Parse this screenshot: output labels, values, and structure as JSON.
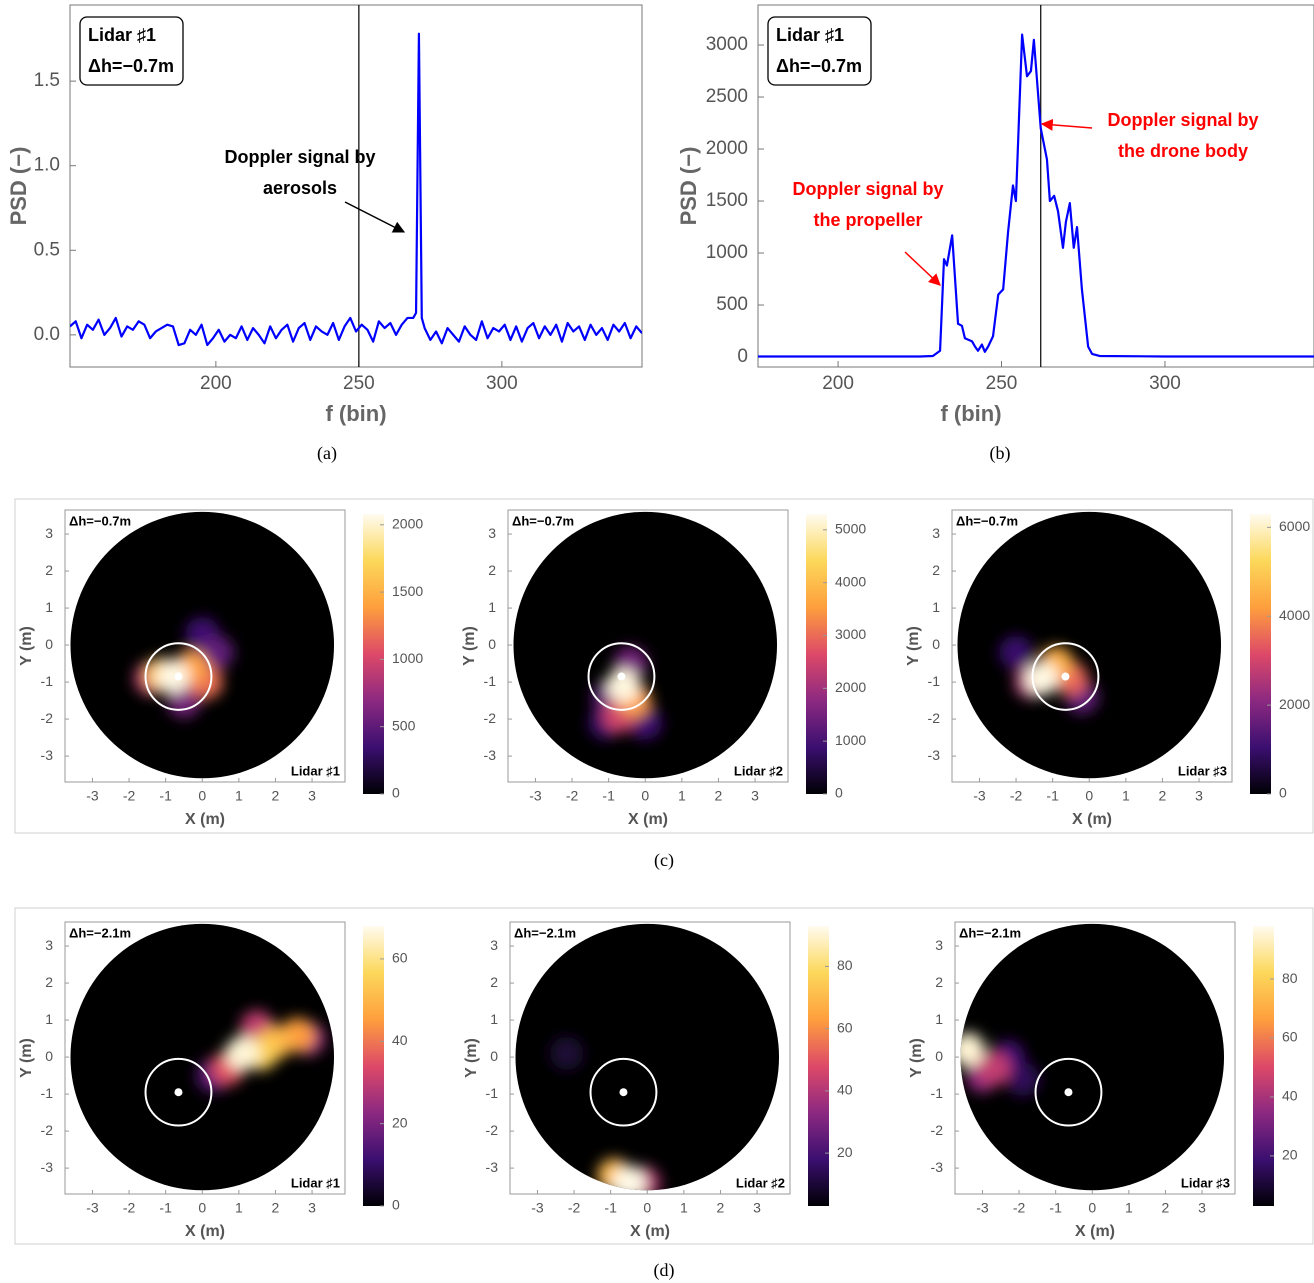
{
  "captions": [
    "(a)",
    "(b)",
    "(c)",
    "(d)"
  ],
  "colormap": [
    "#000004",
    "#3b0f70",
    "#8c2981",
    "#de4968",
    "#fe9f3d",
    "#fcd85a",
    "#fffbf0"
  ],
  "chart_data": [
    {
      "type": "line",
      "xlabel": "f (bin)",
      "ylabel": "PSD (−)",
      "color": "#0000ff",
      "box_text": [
        "Lidar ♯1",
        "Δh=−0.7m"
      ],
      "xlim": [
        149,
        349
      ],
      "ylim": [
        -0.19,
        1.95
      ],
      "xticks": [
        200,
        250,
        300
      ],
      "yticks": [
        {
          "value": 0,
          "label": "0.0"
        },
        0.5,
        {
          "value": 1,
          "label": "1.0"
        },
        1.5
      ],
      "vline": 250,
      "annotations": [
        {
          "text": [
            "Doppler signal by",
            "aerosols"
          ],
          "color": "#000000"
        }
      ],
      "x": [
        149,
        151,
        153,
        155,
        157,
        159,
        161,
        163,
        165,
        167,
        169,
        171,
        173,
        175,
        177,
        179,
        181,
        183,
        185,
        187,
        189,
        191,
        193,
        195,
        197,
        199,
        201,
        203,
        205,
        207,
        209,
        211,
        213,
        215,
        217,
        219,
        221,
        223,
        225,
        227,
        229,
        231,
        233,
        235,
        237,
        239,
        241,
        243,
        245,
        247,
        249,
        251,
        253,
        255,
        257,
        259,
        261,
        263,
        265,
        267,
        269,
        270,
        271,
        272,
        273,
        275,
        277,
        279,
        281,
        283,
        285,
        287,
        289,
        291,
        293,
        295,
        297,
        299,
        301,
        303,
        305,
        307,
        309,
        311,
        313,
        315,
        317,
        319,
        321,
        323,
        325,
        327,
        329,
        331,
        333,
        335,
        337,
        339,
        341,
        343,
        345,
        347,
        349
      ],
      "values": [
        0.05,
        0.08,
        -0.02,
        0.06,
        0.03,
        0.09,
        0.0,
        0.04,
        0.1,
        -0.01,
        0.05,
        0.03,
        0.08,
        0.06,
        -0.02,
        0.02,
        0.04,
        0.06,
        0.05,
        -0.06,
        -0.05,
        0.03,
        0.0,
        0.06,
        -0.06,
        -0.02,
        0.03,
        -0.04,
        0.0,
        -0.02,
        0.05,
        -0.03,
        0.04,
        0.0,
        -0.05,
        0.05,
        -0.02,
        0.03,
        0.06,
        -0.04,
        0.04,
        0.07,
        -0.03,
        0.05,
        0.02,
        0.0,
        0.07,
        -0.03,
        0.05,
        0.1,
        0.02,
        0.06,
        0.03,
        -0.04,
        0.08,
        0.04,
        0.07,
        0.0,
        0.06,
        0.1,
        0.1,
        0.13,
        1.78,
        0.1,
        0.04,
        -0.03,
        0.02,
        -0.05,
        0.04,
        0.0,
        -0.04,
        0.05,
        0.0,
        -0.03,
        0.08,
        -0.02,
        0.04,
        0.02,
        0.06,
        -0.03,
        0.05,
        -0.04,
        0.04,
        0.07,
        -0.02,
        0.05,
        0.0,
        0.06,
        -0.04,
        0.07,
        0.02,
        0.05,
        -0.03,
        0.06,
        0.0,
        0.04,
        -0.03,
        0.06,
        0.02,
        0.07,
        -0.02,
        0.05,
        0.01
      ]
    },
    {
      "type": "line",
      "xlabel": "f (bin)",
      "ylabel": "PSD (−)",
      "color": "#0000ff",
      "box_text": [
        "Lidar ♯1",
        "Δh=−0.7m"
      ],
      "xlim": [
        175.5,
        345.6
      ],
      "ylim": [
        -96,
        3385
      ],
      "xticks": [
        200,
        250,
        300
      ],
      "yticks": [
        0,
        500,
        1000,
        1500,
        2000,
        2500,
        3000
      ],
      "vline": 262,
      "annotations": [
        {
          "text": [
            "Doppler signal by",
            "the propeller"
          ],
          "color": "#ff0000"
        },
        {
          "text": [
            "Doppler signal by",
            "the drone body"
          ],
          "color": "#ff0000"
        }
      ],
      "x": [
        175.5,
        200,
        225,
        229,
        231.2,
        232.4,
        233.3,
        234.9,
        236.7,
        237.9,
        238.8,
        241,
        241.9,
        242.8,
        244,
        244.9,
        245.9,
        247.4,
        249,
        250.5,
        252,
        253.5,
        254.4,
        256.3,
        257.8,
        259,
        259.9,
        262,
        263.9,
        264.8,
        266.1,
        267.3,
        268.8,
        269.7,
        270.9,
        272.1,
        273.1,
        274.6,
        276.5,
        277.7,
        280,
        300,
        345.6
      ],
      "values": [
        5,
        5,
        5,
        10,
        60,
        940,
        880,
        1170,
        320,
        300,
        180,
        150,
        100,
        60,
        120,
        50,
        100,
        200,
        600,
        650,
        1200,
        1650,
        1500,
        3100,
        2700,
        2750,
        3050,
        2200,
        1900,
        1500,
        1550,
        1400,
        1050,
        1300,
        1480,
        1050,
        1250,
        650,
        100,
        30,
        10,
        5,
        5
      ]
    },
    {
      "type": "heatmap",
      "corner_text": "Δh=−0.7m",
      "lidar": "Lidar ♯1",
      "xlabel": "X (m)",
      "ylabel": "Y (m)",
      "xlim": [
        -3.75,
        3.9
      ],
      "ylim": [
        -3.7,
        3.65
      ],
      "xticks": [
        -3,
        -2,
        -1,
        0,
        1,
        2,
        3
      ],
      "yticks": [
        -3,
        -2,
        -1,
        0,
        1,
        2,
        3
      ],
      "domain_radius": 3.6,
      "target": {
        "x": -0.65,
        "y": -0.85,
        "r": 0.9
      },
      "x": [
        0.0,
        0.4,
        -0.5,
        -1.4,
        0.1,
        -0.3,
        -1.1,
        -0.8
      ],
      "y": [
        0.3,
        -0.2,
        -1.5,
        -0.9,
        -1.0,
        -0.6,
        -0.8,
        -0.85
      ],
      "values": [
        350,
        500,
        600,
        900,
        1200,
        1400,
        1600,
        2050
      ],
      "clim": [
        0,
        2080
      ],
      "cticks": [
        0,
        500,
        1000,
        1500,
        2000
      ]
    },
    {
      "type": "heatmap",
      "corner_text": "Δh=−0.7m",
      "lidar": "Lidar ♯2",
      "xlabel": "X (m)",
      "ylabel": "Y (m)",
      "xlim": [
        -3.75,
        3.9
      ],
      "ylim": [
        -3.7,
        3.65
      ],
      "xticks": [
        -3,
        -2,
        -1,
        0,
        1,
        2,
        3
      ],
      "yticks": [
        -3,
        -2,
        -1,
        0,
        1,
        2,
        3
      ],
      "domain_radius": 3.6,
      "target": {
        "x": -0.65,
        "y": -0.85,
        "r": 0.9
      },
      "x": [
        -1.1,
        0.0,
        -1.0,
        -0.4,
        -0.7,
        -0.3,
        -0.6
      ],
      "y": [
        -2.1,
        -2.1,
        -1.4,
        -0.5,
        -1.9,
        -1.5,
        -1.1
      ],
      "values": [
        800,
        900,
        1200,
        1500,
        2500,
        3500,
        5200
      ],
      "clim": [
        0,
        5300
      ],
      "cticks": [
        0,
        1000,
        2000,
        3000,
        4000,
        5000
      ]
    },
    {
      "type": "heatmap",
      "corner_text": "Δh=−0.7m",
      "lidar": "Lidar ♯3",
      "xlabel": "X (m)",
      "ylabel": "Y (m)",
      "xlim": [
        -3.75,
        3.9
      ],
      "ylim": [
        -3.7,
        3.65
      ],
      "xticks": [
        -3,
        -2,
        -1,
        0,
        1,
        2,
        3
      ],
      "yticks": [
        -3,
        -2,
        -1,
        0,
        1,
        2,
        3
      ],
      "domain_radius": 3.6,
      "target": {
        "x": -0.65,
        "y": -0.85,
        "r": 0.9
      },
      "x": [
        -2.0,
        -0.2,
        -1.6,
        -0.5,
        -0.9,
        -1.3
      ],
      "y": [
        -0.2,
        -1.4,
        -1.0,
        -0.9,
        -0.5,
        -0.9
      ],
      "values": [
        1000,
        1500,
        2500,
        3500,
        4500,
        6200
      ],
      "clim": [
        0,
        6300
      ],
      "cticks": [
        0,
        2000,
        4000,
        6000
      ]
    },
    {
      "type": "heatmap",
      "corner_text": "Δh=−2.1m",
      "lidar": "Lidar ♯1",
      "xlabel": "X (m)",
      "ylabel": "Y (m)",
      "xlim": [
        -3.75,
        3.9
      ],
      "ylim": [
        -3.7,
        3.65
      ],
      "xticks": [
        -3,
        -2,
        -1,
        0,
        1,
        2,
        3
      ],
      "yticks": [
        -3,
        -2,
        -1,
        0,
        1,
        2,
        3
      ],
      "domain_radius": 3.6,
      "target": {
        "x": -0.65,
        "y": -0.95,
        "r": 0.9
      },
      "x": [
        0.3,
        2.9,
        1.5,
        0.7,
        2.6,
        2.0,
        1.6,
        1.1
      ],
      "y": [
        -0.5,
        0.5,
        0.8,
        -0.3,
        0.6,
        0.4,
        0.1,
        0.1
      ],
      "values": [
        15,
        25,
        30,
        35,
        45,
        50,
        55,
        66
      ],
      "clim": [
        0,
        68
      ],
      "cticks": [
        0,
        20,
        40,
        60
      ]
    },
    {
      "type": "heatmap",
      "corner_text": "Δh=−2.1m",
      "lidar": "Lidar ♯2",
      "xlabel": "X (m)",
      "ylabel": "Y (m)",
      "xlim": [
        -3.75,
        3.9
      ],
      "ylim": [
        -3.7,
        3.65
      ],
      "xticks": [
        -3,
        -2,
        -1,
        0,
        1,
        2,
        3
      ],
      "yticks": [
        -3,
        -2,
        -1,
        0,
        1,
        2,
        3
      ],
      "domain_radius": 3.6,
      "target": {
        "x": -0.65,
        "y": -0.95,
        "r": 0.9
      },
      "x": [
        -2.2,
        -0.1,
        -0.9,
        -0.5
      ],
      "y": [
        0.1,
        -3.4,
        -3.2,
        -3.4
      ],
      "values": [
        10,
        40,
        70,
        92
      ],
      "clim": [
        3,
        93
      ],
      "cticks": [
        20,
        40,
        60,
        80
      ]
    },
    {
      "type": "heatmap",
      "corner_text": "Δh=−2.1m",
      "lidar": "Lidar ♯3",
      "xlabel": "X (m)",
      "ylabel": "Y (m)",
      "xlim": [
        -3.75,
        3.9
      ],
      "ylim": [
        -3.7,
        3.65
      ],
      "xticks": [
        -3,
        -2,
        -1,
        0,
        1,
        2,
        3
      ],
      "yticks": [
        -3,
        -2,
        -1,
        0,
        1,
        2,
        3
      ],
      "domain_radius": 3.6,
      "target": {
        "x": -0.65,
        "y": -0.95,
        "r": 0.9
      },
      "x": [
        -1.9,
        -2.3,
        -3.0,
        -2.7,
        -3.4
      ],
      "y": [
        -0.6,
        0.0,
        -0.5,
        -0.3,
        0.2
      ],
      "values": [
        15,
        20,
        35,
        45,
        95
      ],
      "clim": [
        3,
        98
      ],
      "cticks": [
        20,
        40,
        60,
        80
      ]
    }
  ]
}
